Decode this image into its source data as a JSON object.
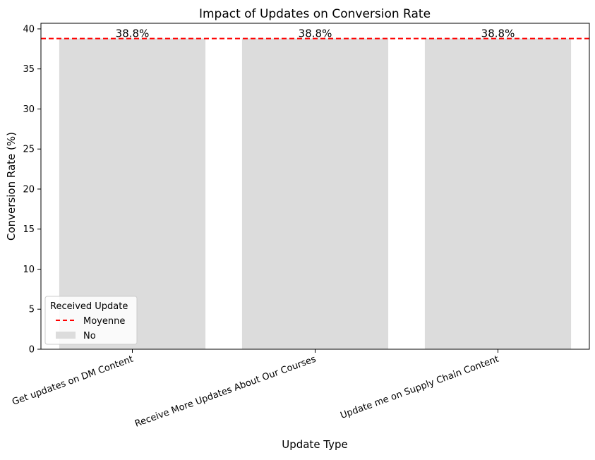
{
  "chart_data": {
    "type": "bar",
    "title": "Impact of Updates on Conversion Rate",
    "xlabel": "Update Type",
    "ylabel": "Conversion Rate (%)",
    "categories": [
      "Get updates on DM Content",
      "Receive More Updates About Our Courses",
      "Update me on Supply Chain Content"
    ],
    "series": [
      {
        "name": "No",
        "values": [
          38.8,
          38.8,
          38.8
        ],
        "color": "#dcdcdc"
      }
    ],
    "data_labels": [
      "38.8%",
      "38.8%",
      "38.8%"
    ],
    "reference_line": {
      "name": "Moyenne",
      "value": 38.8,
      "color": "#ff0000",
      "style": "dashed"
    },
    "ylim": [
      0,
      40.7
    ],
    "yticks": [
      0,
      5,
      10,
      15,
      20,
      25,
      30,
      35,
      40
    ],
    "grid": false,
    "legend": {
      "title": "Received Update",
      "placement": "lower-left",
      "entries": [
        "Moyenne",
        "No"
      ]
    }
  }
}
